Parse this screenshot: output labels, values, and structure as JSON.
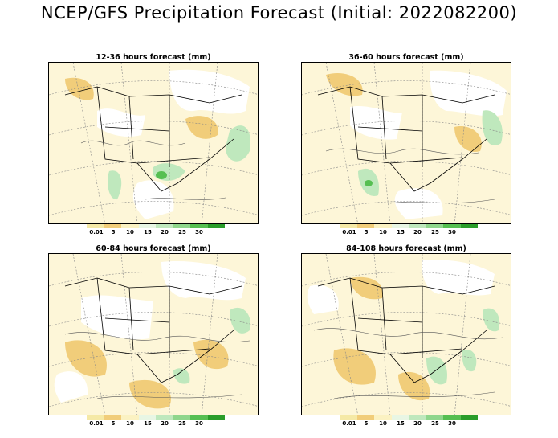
{
  "title": "NCEP/GFS Precipitation Forecast (Initial: 2022082200)",
  "panels": [
    {
      "title": "12-36 hours forecast (mm)"
    },
    {
      "title": "36-60 hours forecast (mm)"
    },
    {
      "title": "60-84 hours forecast (mm)"
    },
    {
      "title": "84-108 hours forecast (mm)"
    }
  ],
  "legend": {
    "labels": [
      "0.01",
      "5",
      "10",
      "15",
      "20",
      "25",
      "30"
    ],
    "colors": [
      "#f5e9a6",
      "#f1cd7a",
      "#fbf2c2",
      "#e8f6e4",
      "#bfe8bd",
      "#8fd68c",
      "#56bf52",
      "#2a9d2a"
    ]
  },
  "colors": {
    "land_background": "#fdf6d8",
    "dry": "#ffffff",
    "light": "#f5e9a6",
    "moderate": "#f1cd7a",
    "heavy": "#bfe8bd",
    "very_heavy": "#56bf52"
  }
}
